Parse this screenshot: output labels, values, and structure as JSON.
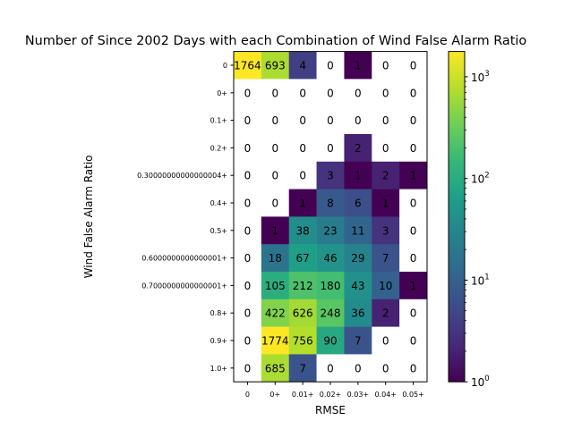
{
  "chart_data": {
    "type": "heatmap",
    "title": "Number of Since 2002 Days with each Combination of Wind False Alarm Ratio",
    "xlabel": "RMSE",
    "ylabel": "Wind False Alarm Ratio",
    "x_categories": [
      "0",
      "0+",
      "0.01+",
      "0.02+",
      "0.03+",
      "0.04+",
      "0.05+"
    ],
    "y_categories": [
      "0",
      "0+",
      "0.1+",
      "0.2+",
      "0.30000000000000004+",
      "0.4+",
      "0.5+",
      "0.6000000000000001+",
      "0.7000000000000001+",
      "0.8+",
      "0.9+",
      "1.0+"
    ],
    "values": [
      [
        1764,
        693,
        4,
        0,
        1,
        0,
        0
      ],
      [
        0,
        0,
        0,
        0,
        0,
        0,
        0
      ],
      [
        0,
        0,
        0,
        0,
        0,
        0,
        0
      ],
      [
        0,
        0,
        0,
        0,
        2,
        0,
        0
      ],
      [
        0,
        0,
        0,
        3,
        1,
        2,
        1
      ],
      [
        0,
        0,
        1,
        8,
        6,
        1,
        0
      ],
      [
        0,
        1,
        38,
        23,
        11,
        3,
        0
      ],
      [
        0,
        18,
        67,
        46,
        29,
        7,
        0
      ],
      [
        0,
        105,
        212,
        180,
        43,
        10,
        1
      ],
      [
        0,
        422,
        626,
        248,
        36,
        2,
        0
      ],
      [
        0,
        1774,
        756,
        90,
        7,
        0,
        0
      ],
      [
        0,
        685,
        7,
        0,
        0,
        0,
        0
      ]
    ],
    "colorscale": "viridis",
    "color_scale_type": "log",
    "colorbar_range": [
      1,
      1774
    ],
    "colorbar_ticks": [
      {
        "base": "10",
        "exp": "0"
      },
      {
        "base": "10",
        "exp": "1"
      },
      {
        "base": "10",
        "exp": "2"
      },
      {
        "base": "10",
        "exp": "3"
      }
    ],
    "zero_cell_color": "#ffffff"
  }
}
